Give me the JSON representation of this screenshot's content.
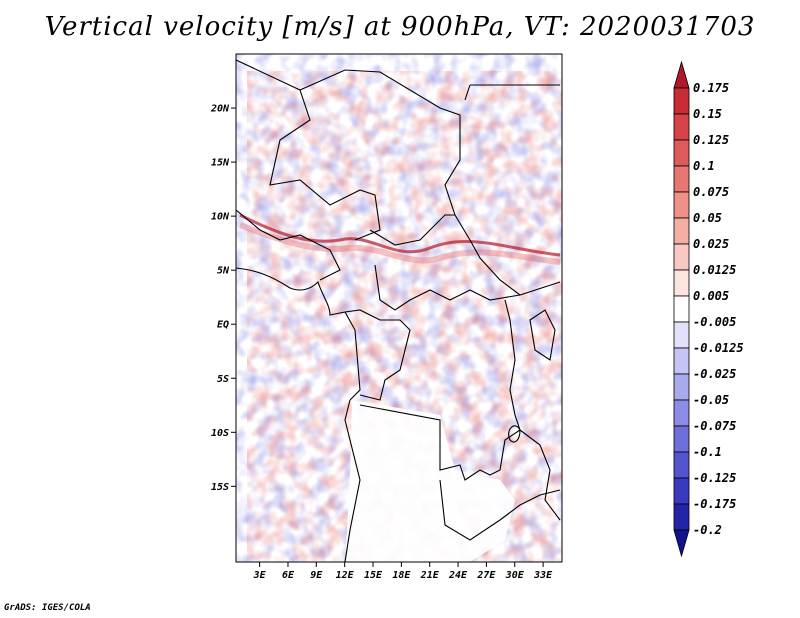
{
  "title": "Vertical velocity [m/s] at 900hPa, VT: 2020031703",
  "footer": "GrADS: IGES/COLA",
  "map": {
    "lat_range": [
      -22,
      25
    ],
    "lon_range": [
      0.5,
      35
    ],
    "lat_ticks": [
      {
        "value": 20,
        "label": "20N"
      },
      {
        "value": 15,
        "label": "15N"
      },
      {
        "value": 10,
        "label": "10N"
      },
      {
        "value": 5,
        "label": "5N"
      },
      {
        "value": 0,
        "label": "EQ"
      },
      {
        "value": -5,
        "label": "5S"
      },
      {
        "value": -10,
        "label": "10S"
      },
      {
        "value": -15,
        "label": "15S"
      }
    ],
    "lon_ticks": [
      {
        "value": 3,
        "label": "3E"
      },
      {
        "value": 6,
        "label": "6E"
      },
      {
        "value": 9,
        "label": "9E"
      },
      {
        "value": 12,
        "label": "12E"
      },
      {
        "value": 15,
        "label": "15E"
      },
      {
        "value": 18,
        "label": "18E"
      },
      {
        "value": 21,
        "label": "21E"
      },
      {
        "value": 24,
        "label": "24E"
      },
      {
        "value": 27,
        "label": "27E"
      },
      {
        "value": 30,
        "label": "30E"
      },
      {
        "value": 33,
        "label": "33E"
      }
    ]
  },
  "colorbar": {
    "labels": [
      "0.175",
      "0.15",
      "0.125",
      "0.1",
      "0.075",
      "0.05",
      "0.025",
      "0.0125",
      "0.005",
      "-0.005",
      "-0.0125",
      "-0.025",
      "-0.05",
      "-0.075",
      "-0.1",
      "-0.125",
      "-0.175",
      "-0.2"
    ],
    "colors": [
      "#b2182b",
      "#c72d33",
      "#d6444a",
      "#e05a5c",
      "#e87672",
      "#ef9189",
      "#f4aea4",
      "#f8c9c2",
      "#fce4e0",
      "#ffffff",
      "#e1e1fb",
      "#c5c5f5",
      "#a9a9ee",
      "#8c8ce6",
      "#6f6fdc",
      "#5454cf",
      "#3a3abf",
      "#2424a8",
      "#12128f"
    ]
  }
}
